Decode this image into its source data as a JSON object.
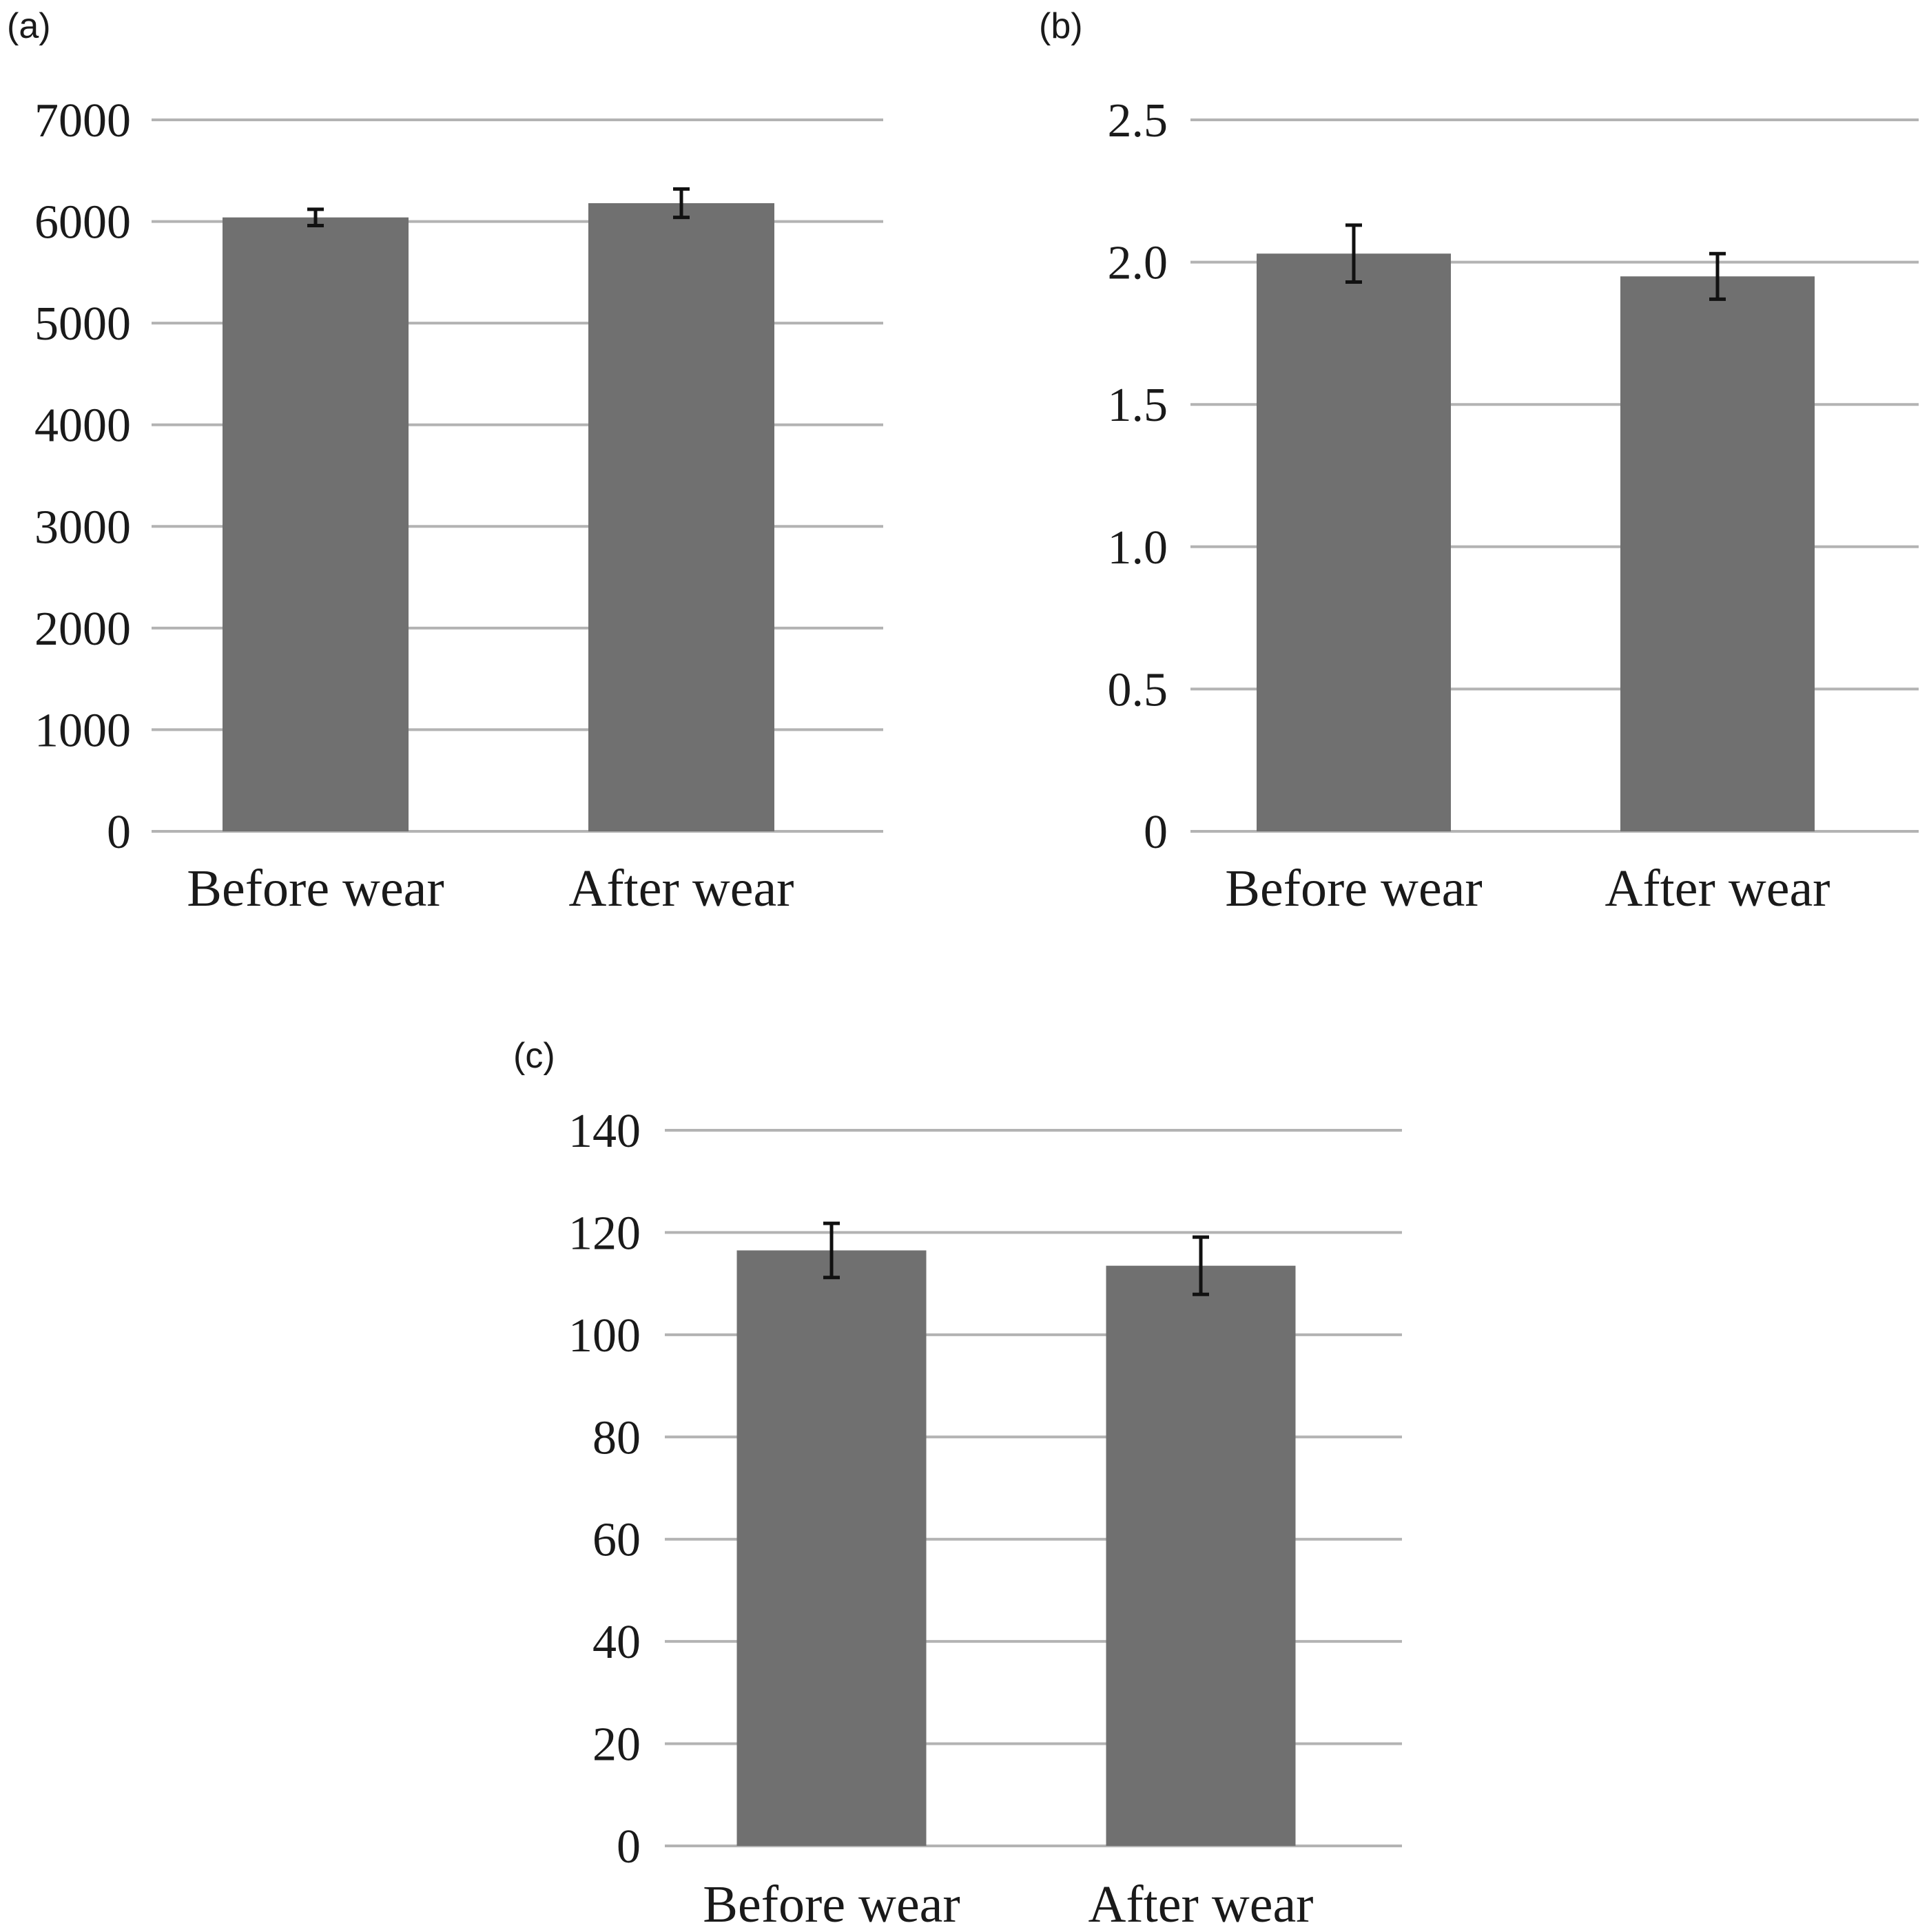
{
  "colors": {
    "bar": "#707070",
    "grid": "#b3b3b3",
    "error_bar": "#111111",
    "text": "#1a1a1a"
  },
  "chart_data": [
    {
      "panel": "(a)",
      "type": "bar",
      "categories": [
        "Before wear",
        "After wear"
      ],
      "values": [
        6040,
        6180
      ],
      "errors": [
        80,
        140
      ],
      "yticks": [
        "0",
        "1000",
        "2000",
        "3000",
        "4000",
        "5000",
        "6000",
        "7000"
      ],
      "ylim": [
        0,
        7000
      ],
      "grid": true,
      "legend": false
    },
    {
      "panel": "(b)",
      "type": "bar",
      "categories": [
        "Before wear",
        "After wear"
      ],
      "values": [
        2.03,
        1.95
      ],
      "errors": [
        0.1,
        0.08
      ],
      "yticks": [
        "0",
        "0.5",
        "1.0",
        "1.5",
        "2.0",
        "2.5"
      ],
      "ylim": [
        0,
        2.5
      ],
      "grid": true,
      "legend": false
    },
    {
      "panel": "(c)",
      "type": "bar",
      "categories": [
        "Before wear",
        "After wear"
      ],
      "values": [
        116.5,
        113.5
      ],
      "errors": [
        5.3,
        5.6
      ],
      "yticks": [
        "0",
        "20",
        "40",
        "60",
        "80",
        "100",
        "120",
        "140"
      ],
      "ylim": [
        0,
        140
      ],
      "grid": true,
      "legend": false
    }
  ]
}
